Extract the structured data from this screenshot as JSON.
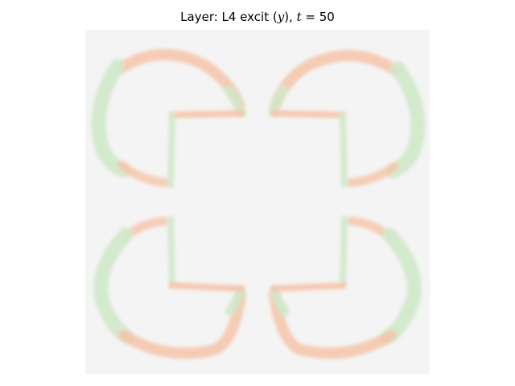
{
  "title": {
    "prefix": "Layer: L4 excit (",
    "var": "y",
    "middle": "), ",
    "time_var": "t",
    "equals": " = ",
    "time_value": "50"
  },
  "image": {
    "description_key": "activity-heatmap",
    "background_color": "#f4f4f4",
    "colors": {
      "positive_orange": "#f6c4a8",
      "negative_green": "#cfe9c9"
    },
    "shape": "kanizsa-square-inducers"
  }
}
